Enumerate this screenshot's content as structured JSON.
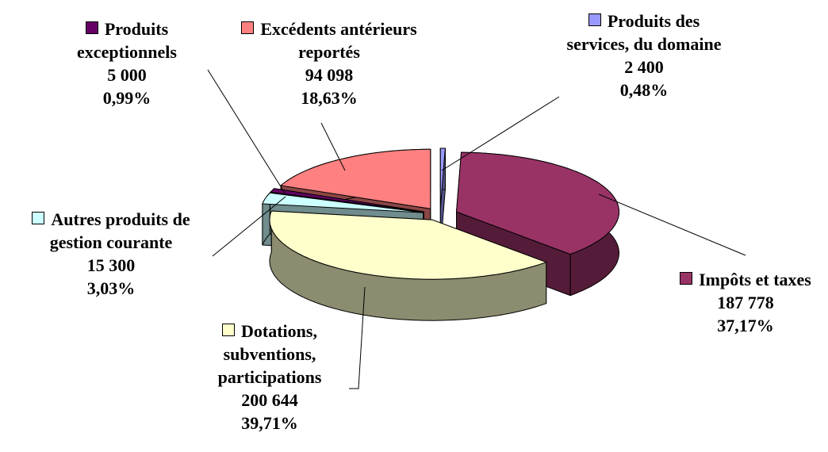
{
  "chart_data": {
    "type": "pie",
    "categories": [
      "Produits des services, du domaine",
      "Impôts et taxes",
      "Dotations, subventions, participations",
      "Autres produits de gestion courante",
      "Produits exceptionnels",
      "Excédents antérieurs reportés"
    ],
    "values": [
      2400,
      187778,
      200644,
      15300,
      5000,
      94098
    ],
    "value_labels": [
      "2 400",
      "187 778",
      "200 644",
      "15 300",
      "5 000",
      "94 098"
    ],
    "percent_labels": [
      "0,48%",
      "37,17%",
      "39,71%",
      "3,03%",
      "0,99%",
      "18,63%"
    ],
    "colors": [
      "#9999ff",
      "#993366",
      "#ffffcc",
      "#ccffff",
      "#660066",
      "#ff8080"
    ]
  }
}
